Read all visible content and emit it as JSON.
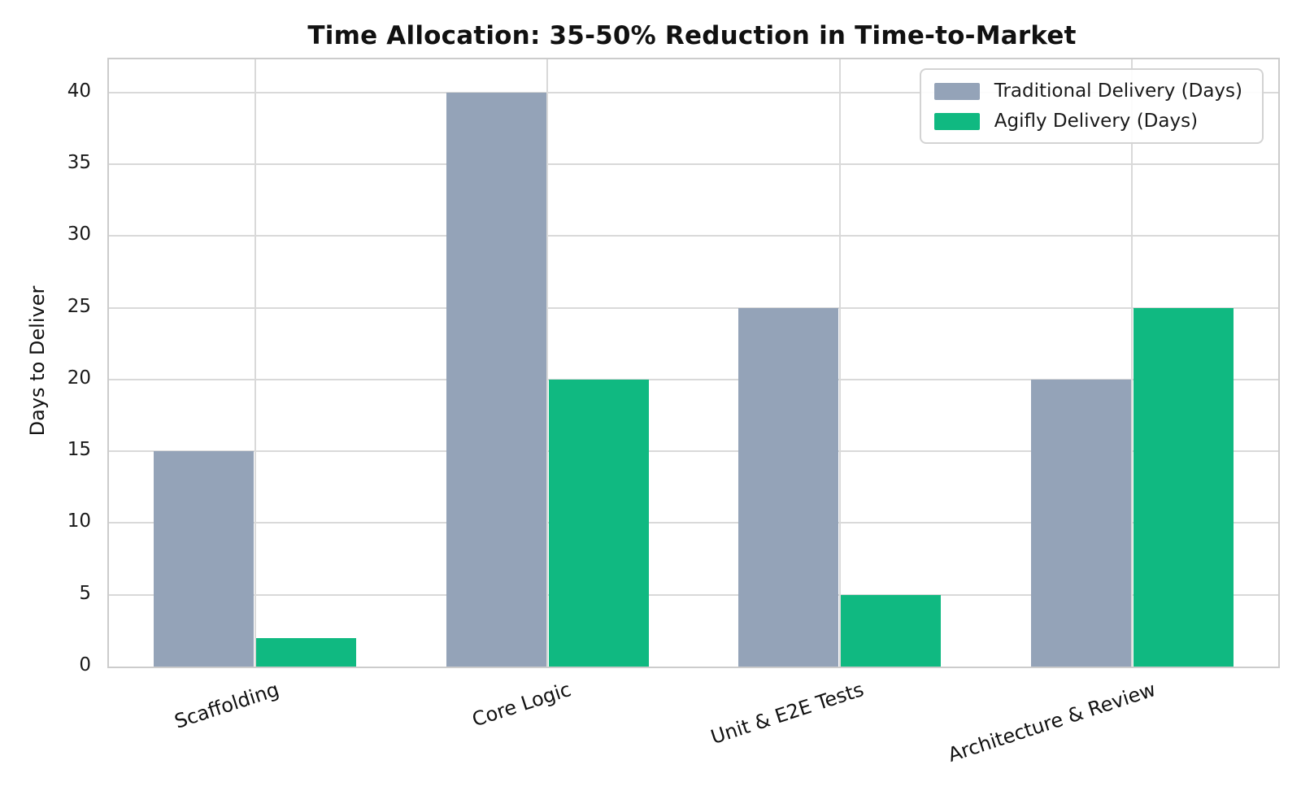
{
  "chart_data": {
    "type": "bar",
    "title": "Time Allocation: 35-50% Reduction in Time-to-Market",
    "ylabel": "Days to Deliver",
    "xlabel": "",
    "categories": [
      "Scaffolding",
      "Core Logic",
      "Unit & E2E Tests",
      "Architecture & Review"
    ],
    "series": [
      {
        "name": "Traditional Delivery (Days)",
        "color": "#94a3b8",
        "values": [
          15,
          40,
          25,
          20
        ]
      },
      {
        "name": "Agifly Delivery (Days)",
        "color": "#10b981",
        "values": [
          2,
          20,
          5,
          25
        ]
      }
    ],
    "yticks": [
      0,
      5,
      10,
      15,
      20,
      25,
      30,
      35,
      40
    ],
    "ylim": [
      0,
      42.3
    ],
    "grid": true,
    "legend_position": "upper right",
    "bar_width_ratio": 0.35
  },
  "style": {
    "background": "#ffffff",
    "grid_color": "#d9d9d9",
    "axis_border_color": "#cccccc",
    "text_color": "#1a1a1a",
    "traditional_color": "#94a3b8",
    "agifly_color": "#10b981"
  }
}
